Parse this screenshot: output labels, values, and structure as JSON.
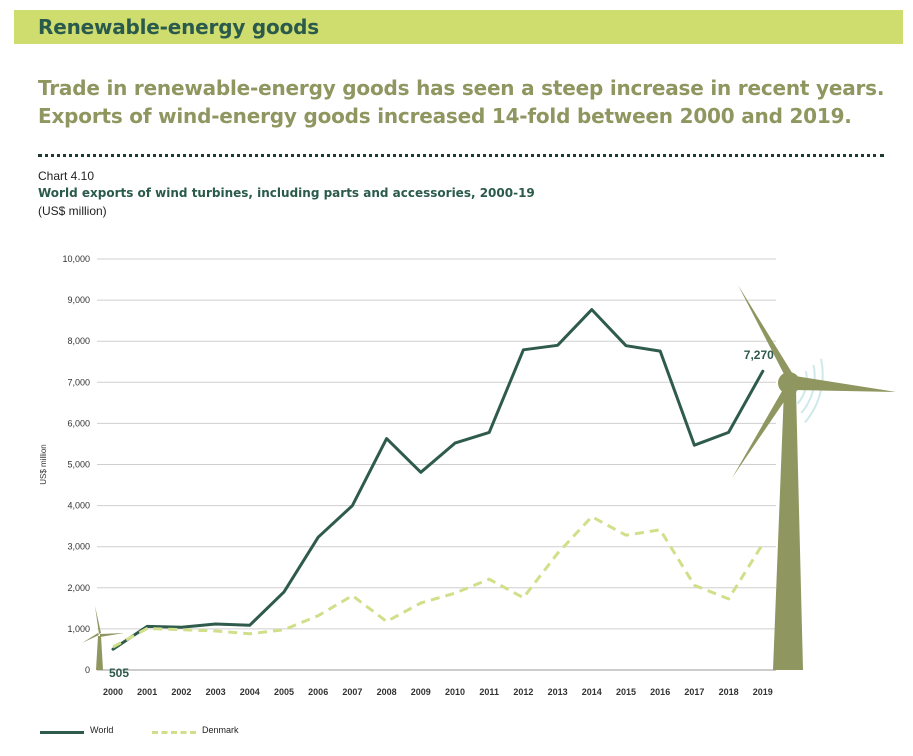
{
  "header": {
    "banner_title": "Renewable-energy goods",
    "headline_line1": "Trade in renewable-energy goods has seen a steep increase in recent years.",
    "headline_line2": "Exports of wind-energy goods increased 14-fold between 2000 and 2019."
  },
  "chart_meta": {
    "number": "Chart 4.10",
    "title": "World exports of wind turbines, including parts and accessories, 2000-19",
    "unit": "(US$ million)"
  },
  "colors": {
    "banner": "#cfdc6e",
    "world": "#2f5b4c",
    "denmark": "#d2df8a",
    "grid": "#cfcfcf",
    "turbine": "#8f9660",
    "waves": "#cfe9ea"
  },
  "chart_data": {
    "type": "line",
    "title": "World exports of wind turbines, including parts and accessories, 2000-19",
    "xlabel": "",
    "ylabel": "US$ million",
    "ylim": [
      0,
      10000
    ],
    "yticks": [
      0,
      1000,
      2000,
      3000,
      4000,
      5000,
      6000,
      7000,
      8000,
      9000,
      10000
    ],
    "ytick_labels": [
      "0",
      "1,000",
      "2,000",
      "3,000",
      "4,000",
      "5,000",
      "6,000",
      "7,000",
      "8,000",
      "9,000",
      "10,000"
    ],
    "categories": [
      "2000",
      "2001",
      "2002",
      "2003",
      "2004",
      "2005",
      "2006",
      "2007",
      "2008",
      "2009",
      "2010",
      "2011",
      "2012",
      "2013",
      "2014",
      "2015",
      "2016",
      "2017",
      "2018",
      "2019"
    ],
    "grid": true,
    "legend_position": "bottom-left",
    "series": [
      {
        "name": "World",
        "style": "solid",
        "values": [
          505,
          1060,
          1040,
          1120,
          1090,
          1900,
          3230,
          4000,
          5630,
          4810,
          5520,
          5780,
          7790,
          7900,
          8770,
          7890,
          7760,
          5470,
          5780,
          7270
        ]
      },
      {
        "name": "Denmark",
        "style": "dashed",
        "values": [
          560,
          1010,
          980,
          950,
          880,
          980,
          1320,
          1810,
          1180,
          1630,
          1870,
          2210,
          1760,
          2840,
          3730,
          3280,
          3410,
          2060,
          1730,
          3070
        ]
      }
    ],
    "annotations": [
      {
        "series": "World",
        "year": "2000",
        "text": "505"
      },
      {
        "series": "World",
        "year": "2019",
        "text": "7,270"
      }
    ]
  }
}
